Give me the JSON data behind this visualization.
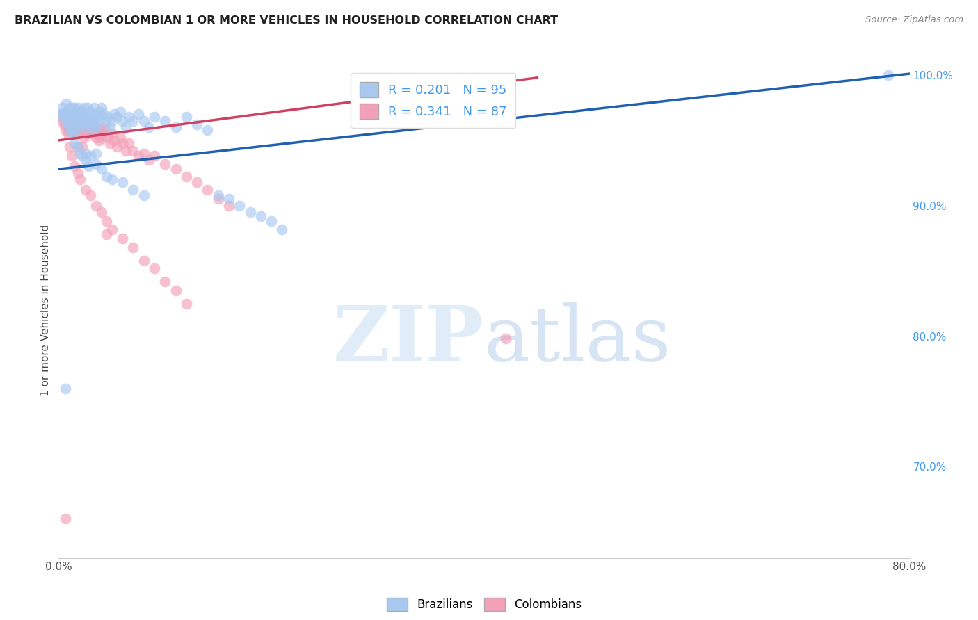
{
  "title": "BRAZILIAN VS COLOMBIAN 1 OR MORE VEHICLES IN HOUSEHOLD CORRELATION CHART",
  "source": "Source: ZipAtlas.com",
  "ylabel": "1 or more Vehicles in Household",
  "x_min": 0.0,
  "x_max": 0.8,
  "y_min": 0.63,
  "y_max": 1.01,
  "legend_blue_label": "R = 0.201   N = 95",
  "legend_pink_label": "R = 0.341   N = 87",
  "blue_color": "#A8C8F0",
  "pink_color": "#F4A0B8",
  "blue_line_color": "#2060B0",
  "pink_line_color": "#D04060",
  "background_color": "#FFFFFF",
  "grid_color": "#CCCCCC",
  "title_color": "#222222",
  "source_color": "#888888",
  "right_tick_color": "#4499EE",
  "blue_scatter_x": [
    0.002,
    0.003,
    0.004,
    0.005,
    0.006,
    0.007,
    0.007,
    0.008,
    0.009,
    0.01,
    0.01,
    0.011,
    0.012,
    0.012,
    0.013,
    0.014,
    0.015,
    0.015,
    0.016,
    0.017,
    0.018,
    0.018,
    0.019,
    0.02,
    0.02,
    0.021,
    0.022,
    0.023,
    0.024,
    0.024,
    0.025,
    0.026,
    0.027,
    0.028,
    0.029,
    0.03,
    0.03,
    0.031,
    0.032,
    0.033,
    0.034,
    0.035,
    0.036,
    0.037,
    0.038,
    0.039,
    0.04,
    0.042,
    0.044,
    0.046,
    0.048,
    0.05,
    0.052,
    0.055,
    0.058,
    0.06,
    0.063,
    0.066,
    0.07,
    0.075,
    0.08,
    0.085,
    0.09,
    0.1,
    0.11,
    0.12,
    0.13,
    0.14,
    0.01,
    0.012,
    0.015,
    0.018,
    0.02,
    0.022,
    0.025,
    0.028,
    0.03,
    0.035,
    0.04,
    0.045,
    0.05,
    0.06,
    0.07,
    0.08,
    0.15,
    0.16,
    0.17,
    0.18,
    0.19,
    0.2,
    0.21,
    0.78,
    0.025,
    0.035,
    0.006
  ],
  "blue_scatter_y": [
    0.97,
    0.975,
    0.97,
    0.968,
    0.965,
    0.972,
    0.978,
    0.968,
    0.962,
    0.975,
    0.97,
    0.965,
    0.96,
    0.968,
    0.975,
    0.965,
    0.96,
    0.975,
    0.97,
    0.958,
    0.965,
    0.97,
    0.975,
    0.968,
    0.962,
    0.972,
    0.965,
    0.968,
    0.975,
    0.97,
    0.965,
    0.96,
    0.975,
    0.968,
    0.972,
    0.965,
    0.97,
    0.96,
    0.968,
    0.975,
    0.965,
    0.97,
    0.96,
    0.968,
    0.965,
    0.972,
    0.975,
    0.97,
    0.965,
    0.968,
    0.96,
    0.965,
    0.97,
    0.968,
    0.972,
    0.965,
    0.96,
    0.968,
    0.965,
    0.97,
    0.965,
    0.96,
    0.968,
    0.965,
    0.96,
    0.968,
    0.962,
    0.958,
    0.958,
    0.955,
    0.948,
    0.945,
    0.94,
    0.938,
    0.935,
    0.93,
    0.938,
    0.932,
    0.928,
    0.922,
    0.92,
    0.918,
    0.912,
    0.908,
    0.908,
    0.905,
    0.9,
    0.895,
    0.892,
    0.888,
    0.882,
    1.0,
    0.94,
    0.94,
    0.76
  ],
  "pink_scatter_x": [
    0.002,
    0.003,
    0.004,
    0.005,
    0.006,
    0.007,
    0.008,
    0.009,
    0.01,
    0.01,
    0.011,
    0.012,
    0.013,
    0.014,
    0.015,
    0.015,
    0.016,
    0.017,
    0.018,
    0.019,
    0.02,
    0.021,
    0.022,
    0.023,
    0.024,
    0.025,
    0.026,
    0.027,
    0.028,
    0.029,
    0.03,
    0.031,
    0.032,
    0.033,
    0.034,
    0.035,
    0.036,
    0.037,
    0.038,
    0.039,
    0.04,
    0.041,
    0.042,
    0.044,
    0.046,
    0.048,
    0.05,
    0.052,
    0.055,
    0.058,
    0.06,
    0.063,
    0.066,
    0.07,
    0.075,
    0.08,
    0.085,
    0.09,
    0.1,
    0.11,
    0.12,
    0.13,
    0.14,
    0.15,
    0.16,
    0.01,
    0.012,
    0.015,
    0.018,
    0.02,
    0.025,
    0.03,
    0.035,
    0.04,
    0.045,
    0.05,
    0.06,
    0.07,
    0.08,
    0.09,
    0.1,
    0.11,
    0.12,
    0.045,
    0.42,
    0.018,
    0.022,
    0.006
  ],
  "pink_scatter_y": [
    0.968,
    0.97,
    0.965,
    0.962,
    0.958,
    0.965,
    0.96,
    0.955,
    0.968,
    0.962,
    0.958,
    0.955,
    0.96,
    0.965,
    0.958,
    0.97,
    0.96,
    0.955,
    0.962,
    0.958,
    0.965,
    0.96,
    0.968,
    0.958,
    0.952,
    0.96,
    0.955,
    0.965,
    0.958,
    0.962,
    0.958,
    0.955,
    0.96,
    0.965,
    0.958,
    0.952,
    0.96,
    0.955,
    0.95,
    0.958,
    0.952,
    0.955,
    0.96,
    0.958,
    0.952,
    0.948,
    0.955,
    0.95,
    0.945,
    0.952,
    0.948,
    0.942,
    0.948,
    0.942,
    0.938,
    0.94,
    0.935,
    0.938,
    0.932,
    0.928,
    0.922,
    0.918,
    0.912,
    0.905,
    0.9,
    0.945,
    0.938,
    0.93,
    0.925,
    0.92,
    0.912,
    0.908,
    0.9,
    0.895,
    0.888,
    0.882,
    0.875,
    0.868,
    0.858,
    0.852,
    0.842,
    0.835,
    0.825,
    0.878,
    0.798,
    0.945,
    0.945,
    0.66
  ],
  "blue_line_x": [
    0.0,
    0.8
  ],
  "blue_line_y": [
    0.928,
    1.001
  ],
  "pink_line_x": [
    0.0,
    0.45
  ],
  "pink_line_y": [
    0.95,
    0.998
  ],
  "right_yticks": [
    0.7,
    0.8,
    0.9,
    1.0
  ],
  "right_yticklabels": [
    "70.0%",
    "80.0%",
    "90.0%",
    "100.0%"
  ],
  "xticks": [
    0.0,
    0.2,
    0.4,
    0.6,
    0.8
  ],
  "xticklabels": [
    "0.0%",
    "",
    "",
    "",
    "80.0%"
  ]
}
